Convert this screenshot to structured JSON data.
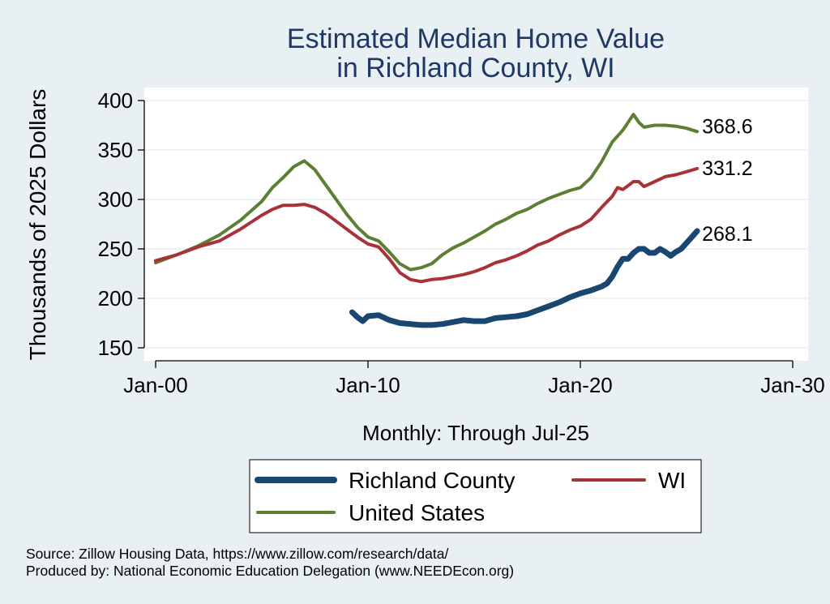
{
  "chart_data": {
    "type": "line",
    "title": [
      "Estimated Median Home Value",
      "in Richland County, WI"
    ],
    "ylabel": "Thousands of 2025 Dollars",
    "xlabel_note": "Monthly: Through Jul-25",
    "ylim": [
      140,
      410
    ],
    "xlim": [
      2000.0,
      2030.0
    ],
    "yticks": [
      150,
      200,
      250,
      300,
      350,
      400
    ],
    "yticklabels": [
      "150",
      "200",
      "250",
      "300",
      "350",
      "400"
    ],
    "xticks": [
      2000,
      2010,
      2020,
      2030
    ],
    "xticklabels": [
      "Jan-00",
      "Jan-10",
      "Jan-20",
      "Jan-30"
    ],
    "grid": true,
    "legend_position": "bottom",
    "series": [
      {
        "name": "Richland County",
        "color": "#1a4770",
        "end_label": "268.1",
        "points": [
          [
            2009.25,
            186
          ],
          [
            2009.5,
            181
          ],
          [
            2009.75,
            177
          ],
          [
            2010.0,
            182
          ],
          [
            2010.5,
            183
          ],
          [
            2011.0,
            178
          ],
          [
            2011.5,
            175
          ],
          [
            2012.0,
            174
          ],
          [
            2012.5,
            173
          ],
          [
            2013.0,
            173
          ],
          [
            2013.5,
            174
          ],
          [
            2014.0,
            176
          ],
          [
            2014.5,
            178
          ],
          [
            2015.0,
            177
          ],
          [
            2015.5,
            177
          ],
          [
            2016.0,
            180
          ],
          [
            2016.5,
            181
          ],
          [
            2017.0,
            182
          ],
          [
            2017.5,
            184
          ],
          [
            2018.0,
            188
          ],
          [
            2018.5,
            192
          ],
          [
            2019.0,
            196
          ],
          [
            2019.5,
            201
          ],
          [
            2020.0,
            205
          ],
          [
            2020.5,
            208
          ],
          [
            2021.0,
            212
          ],
          [
            2021.25,
            215
          ],
          [
            2021.5,
            222
          ],
          [
            2021.75,
            232
          ],
          [
            2022.0,
            240
          ],
          [
            2022.25,
            240
          ],
          [
            2022.5,
            246
          ],
          [
            2022.75,
            250
          ],
          [
            2023.0,
            250
          ],
          [
            2023.25,
            246
          ],
          [
            2023.5,
            246
          ],
          [
            2023.75,
            250
          ],
          [
            2024.0,
            247
          ],
          [
            2024.25,
            243
          ],
          [
            2024.5,
            247
          ],
          [
            2024.75,
            250
          ],
          [
            2025.0,
            256
          ],
          [
            2025.25,
            262
          ],
          [
            2025.5,
            268.1
          ]
        ]
      },
      {
        "name": "WI",
        "color": "#a83238",
        "end_label": "331.2",
        "points": [
          [
            2000.0,
            238
          ],
          [
            2001.0,
            244
          ],
          [
            2002.0,
            252
          ],
          [
            2003.0,
            258
          ],
          [
            2004.0,
            270
          ],
          [
            2005.0,
            284
          ],
          [
            2005.5,
            290
          ],
          [
            2006.0,
            294
          ],
          [
            2006.5,
            294
          ],
          [
            2007.0,
            295
          ],
          [
            2007.5,
            292
          ],
          [
            2008.0,
            286
          ],
          [
            2008.5,
            278
          ],
          [
            2009.0,
            270
          ],
          [
            2009.5,
            262
          ],
          [
            2010.0,
            255
          ],
          [
            2010.5,
            252
          ],
          [
            2011.0,
            240
          ],
          [
            2011.5,
            226
          ],
          [
            2012.0,
            219
          ],
          [
            2012.5,
            217
          ],
          [
            2013.0,
            219
          ],
          [
            2013.5,
            220
          ],
          [
            2014.0,
            222
          ],
          [
            2014.5,
            224
          ],
          [
            2015.0,
            227
          ],
          [
            2015.5,
            231
          ],
          [
            2016.0,
            236
          ],
          [
            2016.5,
            239
          ],
          [
            2017.0,
            243
          ],
          [
            2017.5,
            248
          ],
          [
            2018.0,
            254
          ],
          [
            2018.5,
            258
          ],
          [
            2019.0,
            264
          ],
          [
            2019.5,
            269
          ],
          [
            2020.0,
            273
          ],
          [
            2020.5,
            280
          ],
          [
            2021.0,
            292
          ],
          [
            2021.5,
            303
          ],
          [
            2021.75,
            312
          ],
          [
            2022.0,
            310
          ],
          [
            2022.5,
            318
          ],
          [
            2022.75,
            318
          ],
          [
            2023.0,
            313
          ],
          [
            2023.5,
            318
          ],
          [
            2024.0,
            323
          ],
          [
            2024.5,
            325
          ],
          [
            2025.0,
            328
          ],
          [
            2025.5,
            331.2
          ]
        ]
      },
      {
        "name": "United States",
        "color": "#5c7f34",
        "end_label": "368.6",
        "points": [
          [
            2000.0,
            236
          ],
          [
            2001.0,
            244
          ],
          [
            2002.0,
            253
          ],
          [
            2003.0,
            264
          ],
          [
            2004.0,
            279
          ],
          [
            2005.0,
            298
          ],
          [
            2005.5,
            312
          ],
          [
            2006.0,
            322
          ],
          [
            2006.5,
            333
          ],
          [
            2007.0,
            339
          ],
          [
            2007.5,
            330
          ],
          [
            2008.0,
            315
          ],
          [
            2008.5,
            300
          ],
          [
            2009.0,
            285
          ],
          [
            2009.5,
            272
          ],
          [
            2010.0,
            262
          ],
          [
            2010.5,
            258
          ],
          [
            2011.0,
            247
          ],
          [
            2011.5,
            235
          ],
          [
            2012.0,
            229
          ],
          [
            2012.5,
            231
          ],
          [
            2013.0,
            235
          ],
          [
            2013.5,
            244
          ],
          [
            2014.0,
            251
          ],
          [
            2014.5,
            256
          ],
          [
            2015.0,
            262
          ],
          [
            2015.5,
            268
          ],
          [
            2016.0,
            275
          ],
          [
            2016.5,
            280
          ],
          [
            2017.0,
            286
          ],
          [
            2017.5,
            290
          ],
          [
            2018.0,
            296
          ],
          [
            2018.5,
            301
          ],
          [
            2019.0,
            305
          ],
          [
            2019.5,
            309
          ],
          [
            2020.0,
            312
          ],
          [
            2020.5,
            322
          ],
          [
            2021.0,
            338
          ],
          [
            2021.5,
            358
          ],
          [
            2022.0,
            370
          ],
          [
            2022.5,
            386
          ],
          [
            2022.75,
            378
          ],
          [
            2023.0,
            373
          ],
          [
            2023.5,
            375
          ],
          [
            2024.0,
            375
          ],
          [
            2024.5,
            374
          ],
          [
            2025.0,
            372
          ],
          [
            2025.5,
            368.6
          ]
        ]
      }
    ]
  },
  "source_lines": [
    "Source: Zillow Housing Data, https://www.zillow.com/research/data/",
    "Produced by: National Economic Education Delegation (www.NEEDEcon.org)"
  ]
}
